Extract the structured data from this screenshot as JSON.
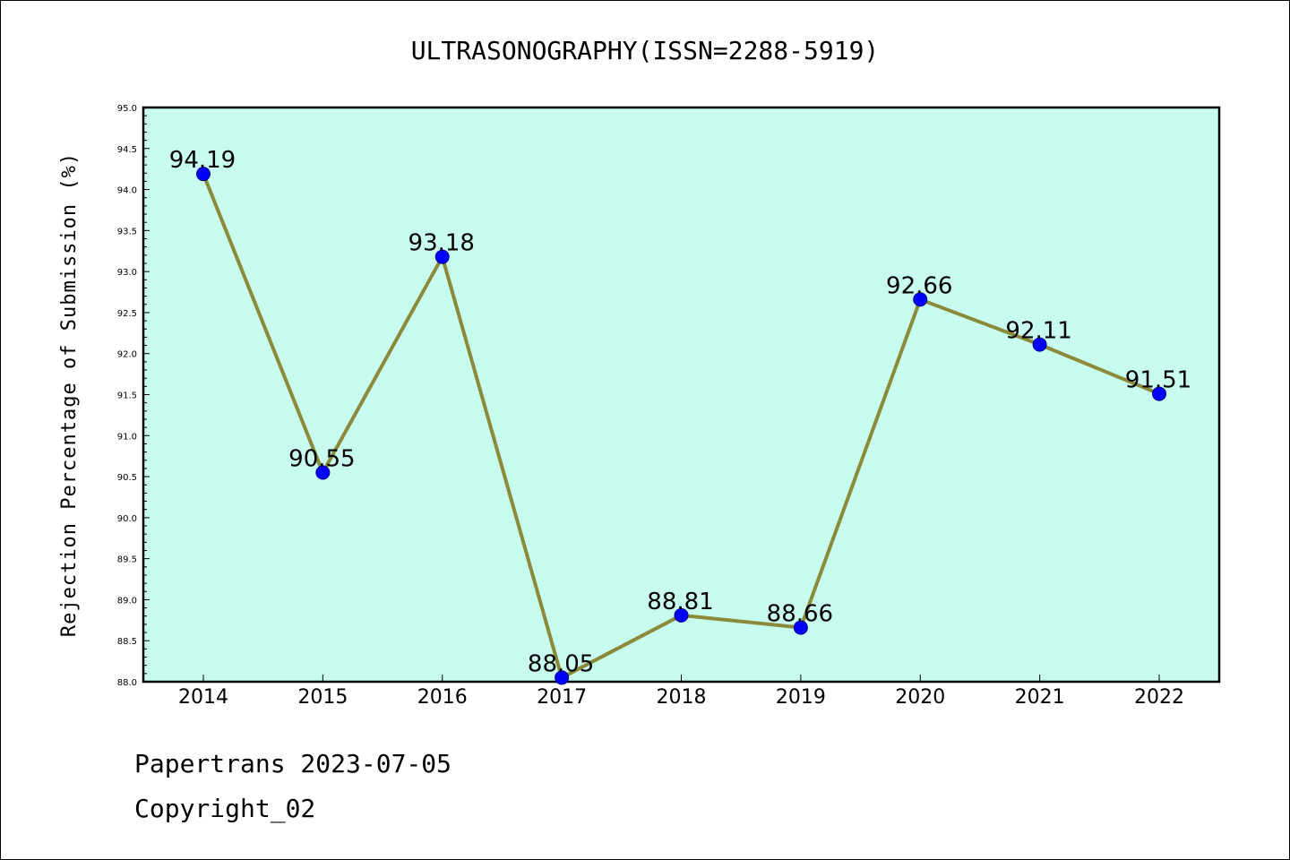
{
  "chart_data": {
    "type": "line",
    "title": "ULTRASONOGRAPHY(ISSN=2288-5919)",
    "xlabel": "",
    "ylabel": "Rejection Percentage of Submission (%)",
    "categories": [
      "2014",
      "2015",
      "2016",
      "2017",
      "2018",
      "2019",
      "2020",
      "2021",
      "2022"
    ],
    "values": [
      94.19,
      90.55,
      93.18,
      88.05,
      88.81,
      88.66,
      92.66,
      92.11,
      91.51
    ],
    "value_labels": [
      "94.19",
      "90.55",
      "93.18",
      "88.05",
      "88.81",
      "88.66",
      "92.66",
      "92.11",
      "91.51"
    ],
    "ylim": [
      88.0,
      95.0
    ],
    "yticks": [
      "88.0",
      "88.5",
      "89.0",
      "89.5",
      "90.0",
      "90.5",
      "91.0",
      "91.5",
      "92.0",
      "92.5",
      "93.0",
      "93.5",
      "94.0",
      "94.5",
      "95.0"
    ],
    "grid": false,
    "colors": {
      "plot_background": "#c8fcee",
      "line": "#8b8a3b",
      "marker": "#0000ff"
    }
  },
  "footer": {
    "line1": "Papertrans 2023-07-05",
    "line2": "Copyright_02"
  }
}
